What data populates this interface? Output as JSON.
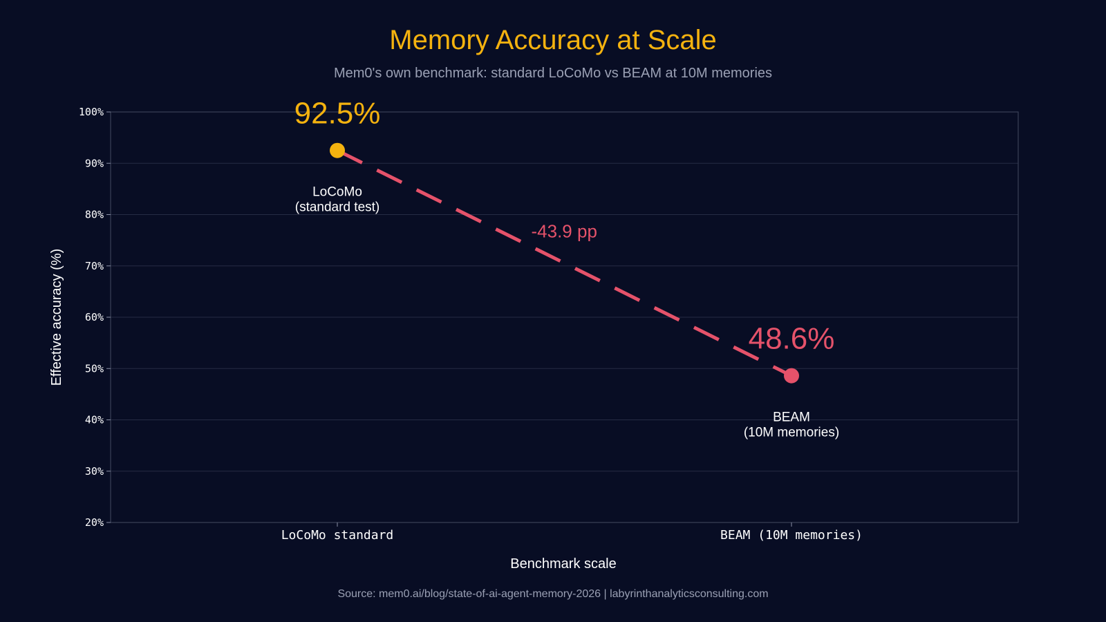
{
  "title": "Memory Accuracy at Scale",
  "subtitle": "Mem0's own benchmark: standard LoCoMo vs BEAM at 10M memories",
  "source": "Source: mem0.ai/blog/state-of-ai-agent-memory-2026  |  labyrinthanalyticsconsulting.com",
  "colors": {
    "background": "#080d24",
    "title": "#f4b20f",
    "accent_start": "#f4b20f",
    "accent_end": "#e5526a",
    "text": "#ffffff",
    "muted": "#9aa0b4"
  },
  "chart_data": {
    "type": "line",
    "xlabel": "Benchmark scale",
    "ylabel": "Effective accuracy (%)",
    "ylim": [
      20,
      100
    ],
    "yticks": [
      "20%",
      "30%",
      "40%",
      "50%",
      "60%",
      "70%",
      "80%",
      "90%",
      "100%"
    ],
    "categories": [
      "LoCoMo standard",
      "BEAM (10M memories)"
    ],
    "grid": true,
    "points": [
      {
        "category": "LoCoMo standard",
        "value": 92.5,
        "value_label": "92.5%",
        "label_line1": "LoCoMo",
        "label_line2": "(standard test)",
        "color": "#f4b20f"
      },
      {
        "category": "BEAM (10M memories)",
        "value": 48.6,
        "value_label": "48.6%",
        "label_line1": "BEAM",
        "label_line2": "(10M memories)",
        "color": "#e5526a"
      }
    ],
    "annotation": "-43.9 pp",
    "line_style": "dashed"
  }
}
